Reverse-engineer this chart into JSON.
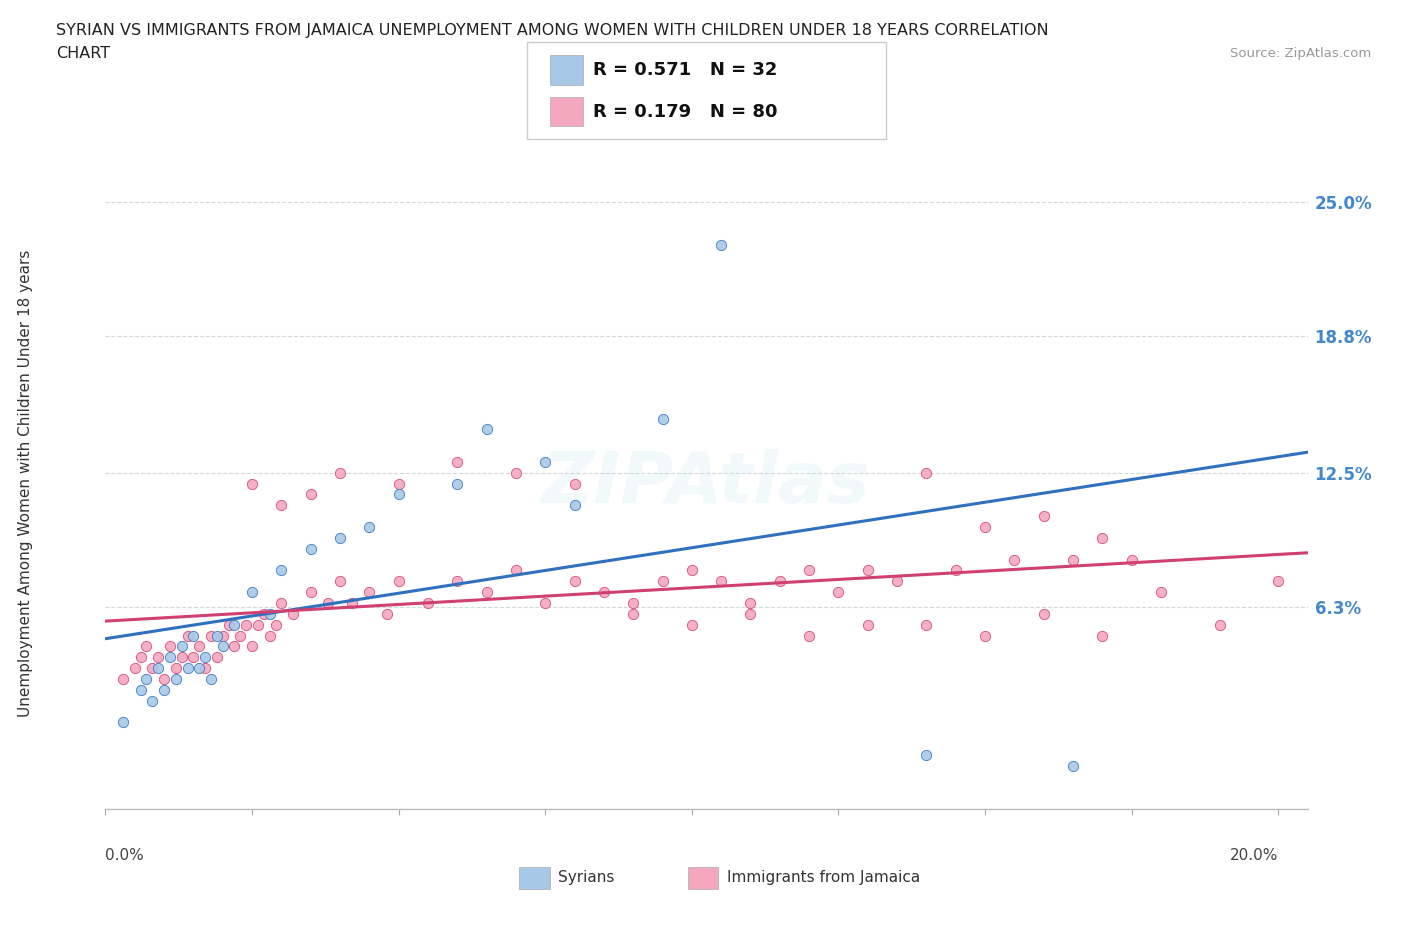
{
  "title_line1": "SYRIAN VS IMMIGRANTS FROM JAMAICA UNEMPLOYMENT AMONG WOMEN WITH CHILDREN UNDER 18 YEARS CORRELATION",
  "title_line2": "CHART",
  "source": "Source: ZipAtlas.com",
  "ylabel": "Unemployment Among Women with Children Under 18 years",
  "xlim": [
    0.0,
    0.205
  ],
  "ylim": [
    -0.03,
    0.27
  ],
  "xticks": [
    0.0,
    0.025,
    0.05,
    0.075,
    0.1,
    0.125,
    0.15,
    0.175,
    0.2
  ],
  "ytick_labels_right": [
    "25.0%",
    "18.8%",
    "12.5%",
    "6.3%"
  ],
  "yticks_right": [
    0.25,
    0.188,
    0.125,
    0.063
  ],
  "grid_yticks": [
    0.25,
    0.188,
    0.125,
    0.063
  ],
  "series1_color": "#a8c8e8",
  "series2_color": "#f4a8c0",
  "line1_color": "#3070c0",
  "line2_color": "#d04070",
  "R1": 0.571,
  "N1": 32,
  "R2": 0.179,
  "N2": 80,
  "legend_label1": "Syrians",
  "legend_label2": "Immigrants from Jamaica",
  "watermark": "ZIPAtlas",
  "background_color": "#ffffff",
  "grid_color": "#d0d8e0",
  "scatter1_x": [
    0.003,
    0.006,
    0.007,
    0.008,
    0.009,
    0.01,
    0.011,
    0.012,
    0.013,
    0.014,
    0.015,
    0.016,
    0.017,
    0.018,
    0.019,
    0.02,
    0.022,
    0.025,
    0.028,
    0.03,
    0.035,
    0.04,
    0.045,
    0.05,
    0.06,
    0.065,
    0.075,
    0.08,
    0.095,
    0.105,
    0.14,
    0.165
  ],
  "scatter1_y": [
    0.01,
    0.025,
    0.03,
    0.02,
    0.035,
    0.025,
    0.04,
    0.03,
    0.045,
    0.035,
    0.05,
    0.035,
    0.04,
    0.03,
    0.05,
    0.045,
    0.055,
    0.07,
    0.06,
    0.08,
    0.09,
    0.095,
    0.1,
    0.115,
    0.12,
    0.145,
    0.13,
    0.11,
    0.15,
    0.23,
    -0.005,
    -0.01
  ],
  "scatter2_x": [
    0.003,
    0.005,
    0.006,
    0.007,
    0.008,
    0.009,
    0.01,
    0.011,
    0.012,
    0.013,
    0.014,
    0.015,
    0.016,
    0.017,
    0.018,
    0.019,
    0.02,
    0.021,
    0.022,
    0.023,
    0.024,
    0.025,
    0.026,
    0.027,
    0.028,
    0.029,
    0.03,
    0.032,
    0.035,
    0.038,
    0.04,
    0.042,
    0.045,
    0.048,
    0.05,
    0.055,
    0.06,
    0.065,
    0.07,
    0.075,
    0.08,
    0.085,
    0.09,
    0.095,
    0.1,
    0.105,
    0.11,
    0.115,
    0.12,
    0.125,
    0.13,
    0.135,
    0.14,
    0.145,
    0.15,
    0.155,
    0.16,
    0.165,
    0.17,
    0.175,
    0.025,
    0.03,
    0.035,
    0.04,
    0.05,
    0.06,
    0.07,
    0.08,
    0.09,
    0.1,
    0.11,
    0.12,
    0.13,
    0.14,
    0.15,
    0.16,
    0.17,
    0.18,
    0.19,
    0.2
  ],
  "scatter2_y": [
    0.03,
    0.035,
    0.04,
    0.045,
    0.035,
    0.04,
    0.03,
    0.045,
    0.035,
    0.04,
    0.05,
    0.04,
    0.045,
    0.035,
    0.05,
    0.04,
    0.05,
    0.055,
    0.045,
    0.05,
    0.055,
    0.045,
    0.055,
    0.06,
    0.05,
    0.055,
    0.065,
    0.06,
    0.07,
    0.065,
    0.075,
    0.065,
    0.07,
    0.06,
    0.075,
    0.065,
    0.075,
    0.07,
    0.08,
    0.065,
    0.075,
    0.07,
    0.065,
    0.075,
    0.08,
    0.075,
    0.065,
    0.075,
    0.08,
    0.07,
    0.08,
    0.075,
    0.125,
    0.08,
    0.1,
    0.085,
    0.105,
    0.085,
    0.095,
    0.085,
    0.12,
    0.11,
    0.115,
    0.125,
    0.12,
    0.13,
    0.125,
    0.12,
    0.06,
    0.055,
    0.06,
    0.05,
    0.055,
    0.055,
    0.05,
    0.06,
    0.05,
    0.07,
    0.055,
    0.075
  ]
}
